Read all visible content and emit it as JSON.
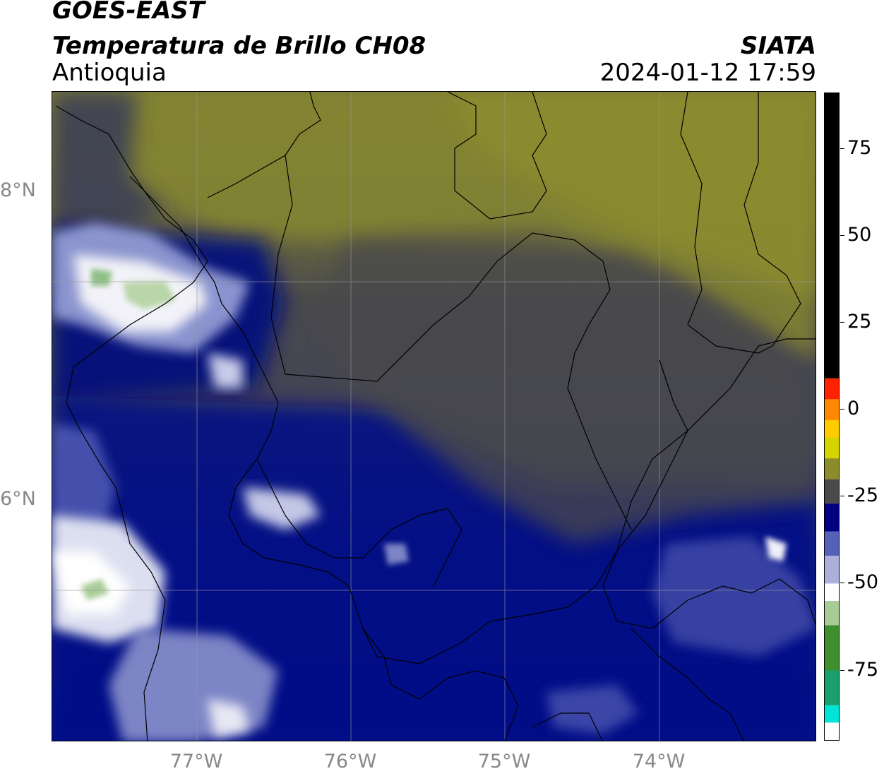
{
  "header": {
    "satellite": "GOES-EAST",
    "product": "Temperatura de Brillo CH08",
    "organization": "SIATA",
    "region": "Antioquia",
    "datetime": "2024-01-12 17:59"
  },
  "map": {
    "lat_labels": [
      "8°N",
      "6°N"
    ],
    "lon_labels": [
      "77°W",
      "76°W",
      "75°W",
      "74°W"
    ],
    "extent": {
      "lon_min": -77.95,
      "lon_max": -72.99,
      "lat_min": 4.95,
      "lat_max": 9.2
    },
    "layers": [
      "brightness-temperature-field",
      "country-borders",
      "department-borders",
      "coastline",
      "graticule"
    ]
  },
  "colorbar": {
    "tick_labels": [
      "75",
      "50",
      "25",
      "0",
      "-25",
      "-50",
      "-75"
    ],
    "tick_values": [
      75,
      50,
      25,
      0,
      -25,
      -50,
      -75
    ],
    "range": [
      -95,
      91
    ],
    "color_stops": [
      {
        "from": -95,
        "to": -90,
        "color": "#ffffff"
      },
      {
        "from": -90,
        "to": -85,
        "color": "#00e5d8"
      },
      {
        "from": -85,
        "to": -75,
        "color": "#1a9f6e"
      },
      {
        "from": -75,
        "to": -62,
        "color": "#3f8f2f"
      },
      {
        "from": -62,
        "to": -55,
        "color": "#a8cc98"
      },
      {
        "from": -55,
        "to": -50,
        "color": "#ffffff"
      },
      {
        "from": -50,
        "to": -42,
        "color": "#aab0d9"
      },
      {
        "from": -42,
        "to": -35,
        "color": "#5560b8"
      },
      {
        "from": -35,
        "to": -27,
        "color": "#000080"
      },
      {
        "from": -27,
        "to": -20,
        "color": "#4a4a4a"
      },
      {
        "from": -20,
        "to": -14,
        "color": "#8c8c2a"
      },
      {
        "from": -14,
        "to": -8,
        "color": "#d4d400"
      },
      {
        "from": -8,
        "to": -3,
        "color": "#ffcc00"
      },
      {
        "from": -3,
        "to": 3,
        "color": "#ff8800"
      },
      {
        "from": 3,
        "to": 9,
        "color": "#ff2200"
      },
      {
        "from": 9,
        "to": 91,
        "color": "#000000"
      }
    ]
  },
  "colors": {
    "cold_deep": "#000080",
    "mid_gray": "#4a4a4a",
    "warm_olive": "#8a8a30",
    "cloud_white": "#f4f4fa",
    "cloud_green": "#7ab07a",
    "graticule": "#9a9a9a"
  }
}
